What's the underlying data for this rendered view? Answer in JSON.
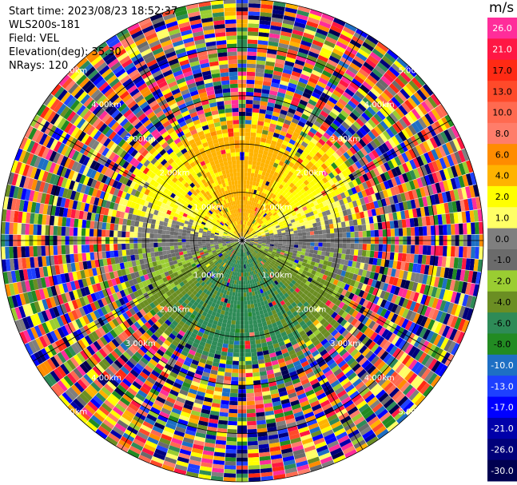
{
  "header": {
    "start_time": "Start time: 2023/08/23 18:52:37",
    "site": "WLS200s-181",
    "field": "Field: VEL",
    "elevation": "Elevation(deg): 35.30",
    "nrays": "NRays: 120"
  },
  "colorbar": {
    "unit": "m/s",
    "ticks": [
      "26.0",
      "21.0",
      "17.0",
      "13.0",
      "10.0",
      "8.0",
      "6.0",
      "4.0",
      "2.0",
      "1.0",
      "0.0",
      "-1.0",
      "-2.0",
      "-4.0",
      "-6.0",
      "-8.0",
      "-10.0",
      "-13.0",
      "-17.0",
      "-21.0",
      "-26.0",
      "-30.0"
    ],
    "colors": [
      "#ff2d9a",
      "#ff1744",
      "#ff2a14",
      "#ff4a2a",
      "#ff6a50",
      "#ff7d6a",
      "#ff8c00",
      "#ffb300",
      "#ffff00",
      "#ffff66",
      "#7f7f7f",
      "#6b6b6b",
      "#9acd32",
      "#6b8e23",
      "#2e8b57",
      "#228b22",
      "#1e6fc4",
      "#1e40ff",
      "#0000ff",
      "#0000aa",
      "#00007a",
      "#000050"
    ]
  },
  "chart_data": {
    "type": "heatmap",
    "projection": "polar PPI",
    "rays": 120,
    "max_range_km": 5.0,
    "range_ring_labels": [
      "1.00km",
      "2.00km",
      "3.00km",
      "4.00km",
      "5.00km"
    ],
    "field": "VEL",
    "units": "m/s",
    "value_range": [
      -30.0,
      26.0
    ],
    "pattern": {
      "inner_valid_range_km": 2.0,
      "north_half": "positive velocities ~2 to 6 m/s (yellow/orange)",
      "south_half": "negative velocities ~-2 to -6 m/s (green)",
      "east_west_axis": "near zero (gray)",
      "outer_range": "noise, random colors across full scale"
    }
  }
}
